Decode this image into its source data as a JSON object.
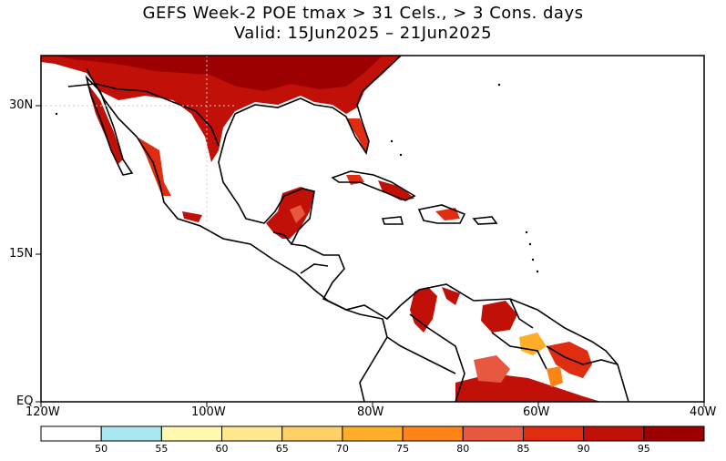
{
  "title": {
    "line1": "GEFS Week-2 POE tmax > 31 Cels., > 3 Cons. days",
    "line2": "Valid: 15Jun2025 – 21Jun2025"
  },
  "axes": {
    "lon_labels": [
      "120W",
      "100W",
      "80W",
      "60W",
      "40W"
    ],
    "lat_labels": [
      "30N",
      "15N",
      "EQ"
    ]
  },
  "colorbar": {
    "labels": [
      "50",
      "55",
      "60",
      "65",
      "70",
      "75",
      "80",
      "85",
      "90",
      "95"
    ],
    "colors": [
      "#ffffff",
      "#a8e8f0",
      "#fff8b0",
      "#ffe890",
      "#ffd068",
      "#ffae28",
      "#ff8418",
      "#e85840",
      "#e02c10",
      "#c01008",
      "#9c0000"
    ]
  },
  "map": {
    "extent": {
      "lon_min": -120,
      "lon_max": -40,
      "lat_min": 0,
      "lat_max": 35
    }
  }
}
